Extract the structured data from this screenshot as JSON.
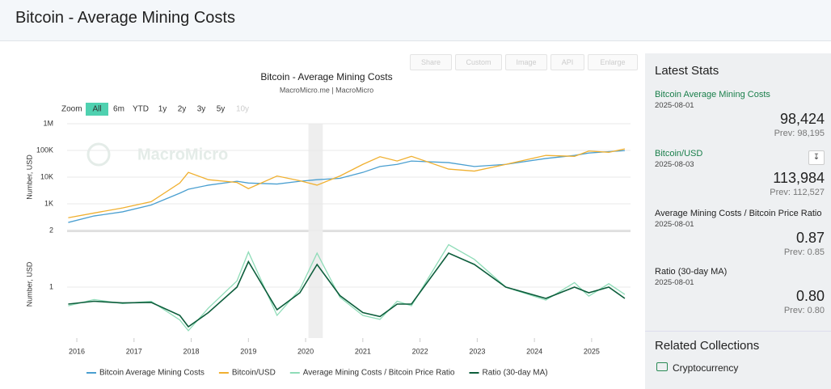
{
  "header": {
    "title": "Bitcoin - Average Mining Costs"
  },
  "toolbar": [
    "Share",
    "Custom",
    "Image",
    "API",
    "Enlarge"
  ],
  "zoom": {
    "label": "Zoom",
    "buttons": [
      "All",
      "6m",
      "YTD",
      "1y",
      "2y",
      "3y",
      "5y",
      "10y"
    ]
  },
  "chart_data": [
    {
      "type": "line",
      "title": "Bitcoin - Average Mining Costs",
      "subtitle": "MacroMicro.me | MacroMicro",
      "watermark": "MacroMicro",
      "ylabel": "Number, USD",
      "log": true,
      "grid": true,
      "highlight": [
        2020.05,
        2020.3
      ],
      "x": [
        2015.85,
        2016.3,
        2016.8,
        2017.3,
        2017.8,
        2017.95,
        2018.3,
        2018.8,
        2019.0,
        2019.5,
        2019.9,
        2020.2,
        2020.6,
        2021.0,
        2021.3,
        2021.6,
        2021.85,
        2022.5,
        2022.95,
        2023.5,
        2024.2,
        2024.7,
        2024.95,
        2025.3,
        2025.58
      ],
      "xlim": [
        2015.83,
        2025.68
      ],
      "ylim": [
        100,
        1000000
      ],
      "yticks": [
        {
          "value": 1000,
          "label": "1K"
        },
        {
          "value": 10000,
          "label": "10K"
        },
        {
          "value": 100000,
          "label": "100K"
        },
        {
          "value": 1000000,
          "label": "1M"
        }
      ],
      "series": [
        {
          "name": "Bitcoin Average Mining Costs",
          "color": "#4a9fd0",
          "values": [
            200,
            350,
            500,
            900,
            2500,
            3500,
            5000,
            7000,
            6000,
            5500,
            7000,
            8000,
            9000,
            15000,
            25000,
            30000,
            40000,
            35000,
            25000,
            30000,
            50000,
            65000,
            80000,
            90000,
            98424
          ]
        },
        {
          "name": "Bitcoin/USD",
          "color": "#f0b030",
          "values": [
            300,
            450,
            700,
            1200,
            6000,
            15000,
            8000,
            6300,
            3700,
            11000,
            7300,
            5000,
            11000,
            30000,
            58000,
            40000,
            60000,
            20000,
            16800,
            30000,
            65000,
            60000,
            95000,
            85000,
            113984
          ]
        }
      ]
    },
    {
      "type": "line",
      "ylabel": "Number, USD",
      "log": false,
      "grid": true,
      "highlight": [
        2020.05,
        2020.3
      ],
      "x": [
        2015.85,
        2016.3,
        2016.8,
        2017.3,
        2017.8,
        2017.95,
        2018.3,
        2018.8,
        2019.0,
        2019.5,
        2019.9,
        2020.2,
        2020.6,
        2021.0,
        2021.3,
        2021.6,
        2021.85,
        2022.5,
        2022.95,
        2023.5,
        2024.2,
        2024.7,
        2024.95,
        2025.3,
        2025.58
      ],
      "xlim": [
        2015.83,
        2025.68
      ],
      "ylim": [
        0.1,
        2.0
      ],
      "yticks": [
        1,
        2
      ],
      "xticks": [
        2016,
        2017,
        2018,
        2019,
        2020,
        2021,
        2022,
        2023,
        2024,
        2025
      ],
      "series": [
        {
          "name": "Average Mining Costs / Bitcoin Price Ratio",
          "color": "#8fdcb8",
          "values": [
            0.67,
            0.78,
            0.71,
            0.75,
            0.42,
            0.23,
            0.63,
            1.11,
            1.62,
            0.5,
            0.96,
            1.6,
            0.82,
            0.5,
            0.43,
            0.75,
            0.67,
            1.75,
            1.49,
            1.0,
            0.77,
            1.08,
            0.84,
            1.06,
            0.87
          ]
        },
        {
          "name": "Ratio (30-day MA)",
          "color": "#0d5e3c",
          "values": [
            0.7,
            0.75,
            0.72,
            0.73,
            0.5,
            0.3,
            0.55,
            1.0,
            1.45,
            0.6,
            0.9,
            1.4,
            0.85,
            0.55,
            0.48,
            0.7,
            0.7,
            1.6,
            1.4,
            1.0,
            0.8,
            1.0,
            0.9,
            1.0,
            0.8
          ]
        }
      ]
    }
  ],
  "stats": {
    "title": "Latest Stats",
    "prev_label": "Prev:",
    "items": [
      {
        "name": "Bitcoin Average Mining Costs",
        "date": "2025-08-01",
        "value": "98,424",
        "prev": "98,195"
      },
      {
        "name": "Bitcoin/USD",
        "date": "2025-08-03",
        "value": "113,984",
        "prev": "112,527"
      },
      {
        "name": "Average Mining Costs / Bitcoin Price Ratio",
        "date": "2025-08-01",
        "value": "0.87",
        "prev": "0.85"
      },
      {
        "name": "Ratio (30-day MA)",
        "date": "2025-08-01",
        "value": "0.80",
        "prev": "0.80"
      }
    ]
  },
  "related": {
    "title": "Related Collections",
    "items": [
      "Cryptocurrency"
    ]
  }
}
